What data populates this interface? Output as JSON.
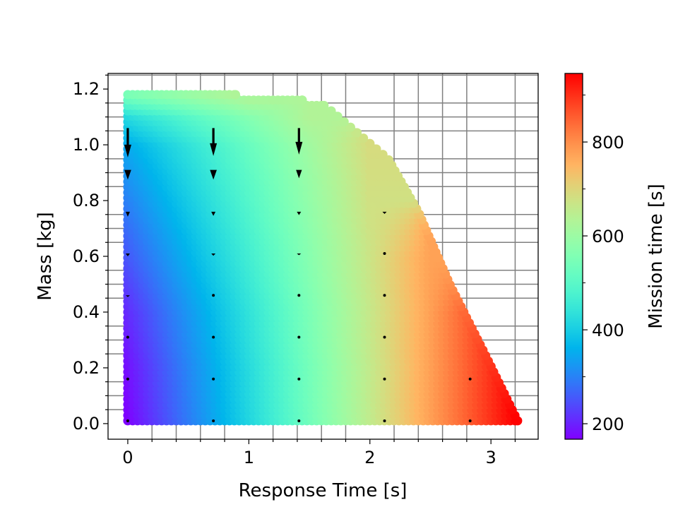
{
  "chart_data": {
    "type": "scatter",
    "xlabel": "Response Time [s]",
    "ylabel": "Mass [kg]",
    "xlim": [
      -0.163,
      3.39
    ],
    "ylim": [
      -0.056,
      1.256
    ],
    "xticks": [
      "0",
      "1",
      "2",
      "3"
    ],
    "xtick_values": [
      0,
      1,
      2,
      3
    ],
    "yticks": [
      "0.0",
      "0.2",
      "0.4",
      "0.6",
      "0.8",
      "1.0",
      "1.2"
    ],
    "ytick_values": [
      0,
      0.2,
      0.4,
      0.6,
      0.8,
      1.0,
      1.2
    ],
    "x_minor_step": 0.2,
    "y_minor_step": 0.05,
    "grid": "minor",
    "colormap": "rainbow",
    "colorbar": {
      "label": "Mission time [s]",
      "range": [
        167,
        946
      ],
      "ticks": [
        "200",
        "400",
        "600",
        "800"
      ],
      "tick_values": [
        200,
        400,
        600,
        800
      ],
      "position": "right"
    },
    "feasible_boundary": {
      "mass": [
        0.01,
        0.25,
        0.5,
        0.76,
        0.95,
        1.14,
        1.16,
        1.17,
        1.18
      ],
      "max_response_time": [
        3.22,
        2.95,
        2.66,
        2.4,
        2.15,
        1.63,
        1.45,
        1.28,
        0.89
      ]
    },
    "mission_time_grid": {
      "response_time": [
        0,
        0.5,
        1,
        1.5,
        2,
        2.5,
        3,
        3.2
      ],
      "mass": [
        0,
        0.2,
        0.4,
        0.6,
        0.8,
        1.0,
        1.1,
        1.18
      ],
      "values": [
        [
          167,
          289,
          410,
          532,
          653,
          775,
          896,
          945
        ],
        [
          182,
          301,
          419,
          538,
          656,
          775,
          896,
          945
        ],
        [
          207,
          321,
          434,
          548,
          661,
          775,
          896,
          null
        ],
        [
          252,
          357,
          461,
          566,
          670,
          775,
          null,
          null
        ],
        [
          297,
          393,
          488,
          584,
          679,
          null,
          null,
          null
        ],
        [
          347,
          433,
          518,
          604,
          689,
          null,
          null,
          null
        ],
        [
          417,
          489,
          560,
          632,
          null,
          null,
          null,
          null
        ],
        [
          547,
          593,
          638,
          null,
          null,
          null,
          null,
          null
        ]
      ]
    },
    "quiver": {
      "direction": "down",
      "response_time": [
        0,
        0.707,
        1.414,
        2.121,
        2.828
      ],
      "mass": [
        0.01,
        0.16,
        0.31,
        0.46,
        0.61,
        0.76,
        0.91,
        1.06
      ],
      "length": [
        [
          0,
          0,
          0,
          0,
          0
        ],
        [
          0,
          0,
          0,
          0,
          0
        ],
        [
          0.004,
          0,
          0,
          0,
          null
        ],
        [
          0.006,
          0.004,
          0,
          0,
          null
        ],
        [
          0.01,
          0.008,
          0.006,
          0,
          null
        ],
        [
          0.018,
          0.015,
          0.012,
          0.008,
          null
        ],
        [
          0.035,
          0.035,
          0.03,
          null,
          null
        ],
        [
          0.105,
          0.1,
          0.095,
          null,
          null
        ]
      ]
    }
  }
}
